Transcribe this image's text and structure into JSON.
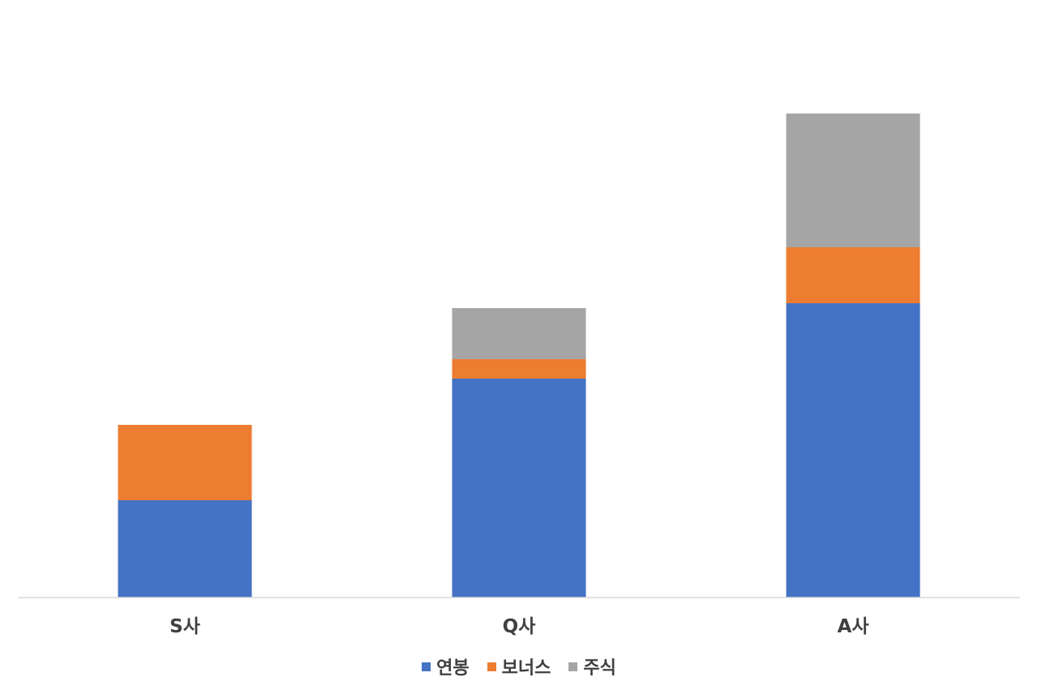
{
  "chart_data": {
    "type": "bar",
    "stacked": true,
    "categories": [
      "S사",
      "Q사",
      "A사"
    ],
    "series": [
      {
        "name": "연봉",
        "color": "#4472C4",
        "values": [
          20,
          45,
          60.5
        ]
      },
      {
        "name": "보너스",
        "color": "#ED7D31",
        "values": [
          15.5,
          4,
          11.5
        ]
      },
      {
        "name": "주식",
        "color": "#A5A5A5",
        "values": [
          0,
          10.5,
          27.5
        ]
      }
    ],
    "title": "",
    "xlabel": "",
    "ylabel": "",
    "ylim": [
      0,
      115
    ],
    "grid": false,
    "legend_position": "bottom"
  }
}
